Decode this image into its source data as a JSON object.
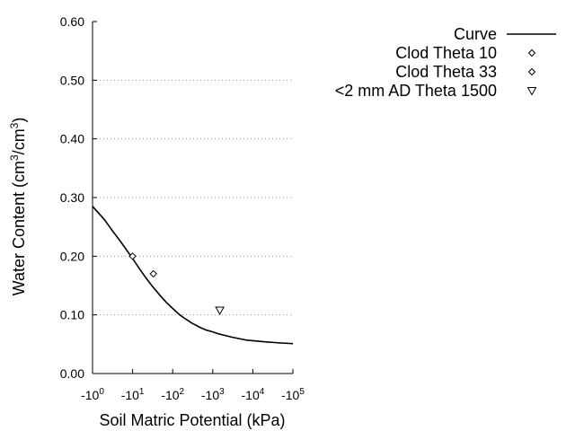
{
  "chart_data": {
    "type": "line",
    "title": "",
    "xlabel": "Soil Matric Potential (kPa)",
    "ylabel_main": "Water Content (cm",
    "ylabel_sup1": "3",
    "ylabel_mid": "/cm",
    "ylabel_sup2": "3",
    "ylabel_end": ")",
    "x_scale": "log",
    "xlim_exp": [
      0,
      5
    ],
    "x_ticks": [
      {
        "base": "-10",
        "exp": "0"
      },
      {
        "base": "-10",
        "exp": "1"
      },
      {
        "base": "-10",
        "exp": "2"
      },
      {
        "base": "-10",
        "exp": "3"
      },
      {
        "base": "-10",
        "exp": "4"
      },
      {
        "base": "-10",
        "exp": "5"
      }
    ],
    "ylim": [
      0,
      0.6
    ],
    "y_ticks": [
      "0.00",
      "0.10",
      "0.20",
      "0.30",
      "0.40",
      "0.50",
      "0.60"
    ],
    "grid": "horizontal dotted",
    "legend_position": "top-right outside",
    "series": [
      {
        "name": "Curve",
        "kind": "line",
        "color": "#000000",
        "x": [
          1,
          2,
          3,
          5,
          7,
          10,
          15,
          20,
          30,
          50,
          70,
          100,
          150,
          200,
          300,
          500,
          700,
          1000,
          1500,
          2000,
          3000,
          5000,
          7000,
          10000,
          20000,
          50000,
          100000
        ],
        "y": [
          0.285,
          0.262,
          0.245,
          0.225,
          0.211,
          0.196,
          0.178,
          0.166,
          0.15,
          0.132,
          0.121,
          0.111,
          0.1,
          0.094,
          0.086,
          0.078,
          0.074,
          0.071,
          0.067,
          0.065,
          0.062,
          0.059,
          0.057,
          0.056,
          0.054,
          0.052,
          0.051
        ]
      },
      {
        "name": "Clod Theta 10",
        "kind": "diamond",
        "x": [
          10
        ],
        "y": [
          0.2
        ]
      },
      {
        "name": "Clod Theta 33",
        "kind": "diamond",
        "x": [
          33
        ],
        "y": [
          0.17
        ]
      },
      {
        "name": "<2 mm AD Theta 1500",
        "kind": "triangle-down",
        "x": [
          1500
        ],
        "y": [
          0.108
        ]
      }
    ]
  }
}
